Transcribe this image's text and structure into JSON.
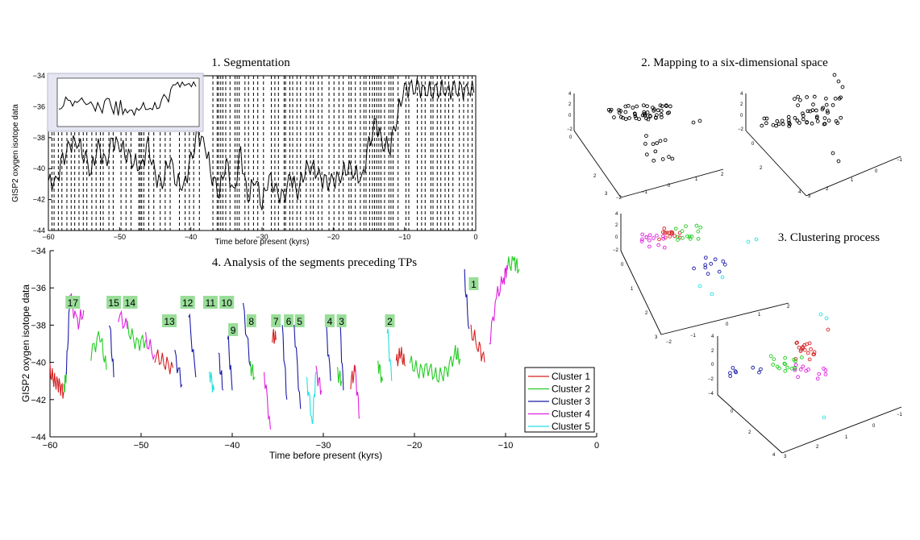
{
  "panel1": {
    "title": "1. Segmentation",
    "xlabel": "Time before present (kyrs)",
    "ylabel": "GISP2 oxygen isotope data",
    "xlim": [
      -60,
      0
    ],
    "ylim": [
      -44,
      -34
    ],
    "xticks": [
      "−60",
      "−50",
      "−40",
      "−30",
      "−20",
      "−10",
      "0"
    ],
    "yticks": [
      "−34",
      "−36",
      "−38",
      "−40",
      "−42",
      "−44"
    ],
    "inset": {
      "present": true
    }
  },
  "panel2": {
    "title": "2. Mapping to a six-dimensional space"
  },
  "panel3": {
    "title": "3. Clustering process"
  },
  "panel4": {
    "title": "4. Analysis of the segments preceding TPs",
    "xlabel": "Time before present (kyrs)",
    "ylabel": "GISP2 oxygen isotope data",
    "xticks": [
      "−60",
      "−50",
      "−40",
      "−30",
      "−20",
      "−10",
      "0"
    ],
    "yticks": [
      "−34",
      "−36",
      "−38",
      "−40",
      "−42",
      "−44"
    ],
    "legend": [
      "Cluster 1",
      "Cluster 2",
      "Cluster 3",
      "Cluster 4",
      "Cluster 5"
    ],
    "legend_colors": [
      "#d62020",
      "#22cc22",
      "#1a1aa8",
      "#e020e0",
      "#20e0e0"
    ],
    "tp_labels": [
      "17",
      "15",
      "14",
      "13",
      "12",
      "11",
      "10",
      "9",
      "8",
      "7",
      "6",
      "5",
      "4",
      "3",
      "2",
      "1"
    ]
  },
  "chart_data": [
    {
      "type": "line",
      "title": "1. Segmentation",
      "xlabel": "Time before present (kyrs)",
      "ylabel": "GISP2 oxygen isotope data",
      "xlim": [
        -60,
        0
      ],
      "ylim": [
        -44,
        -34
      ],
      "series": [
        {
          "x": [
            -60,
            -59,
            -58,
            -57,
            -56,
            -55,
            -54,
            -53,
            -52,
            -51,
            -50,
            -49,
            -48,
            -47,
            -46,
            -45,
            -44,
            -43,
            -42,
            -41,
            -40,
            -39,
            -38,
            -37,
            -36,
            -35,
            -34,
            -33,
            -32,
            -31,
            -30,
            -29,
            -28,
            -27,
            -26,
            -25,
            -24,
            -23,
            -22,
            -21,
            -20,
            -19,
            -18,
            -17,
            -16,
            -15,
            -14,
            -13,
            -12,
            -11,
            -10,
            -9,
            -8,
            -7,
            -6,
            -5,
            -4,
            -3,
            -2,
            -1,
            0
          ],
          "values": [
            -40.8,
            -41,
            -39.5,
            -38.5,
            -38.2,
            -39,
            -40.2,
            -38.5,
            -39.8,
            -38.2,
            -38.5,
            -39,
            -39.5,
            -40,
            -38.5,
            -40.5,
            -41,
            -39.2,
            -40.8,
            -41.2,
            -39.5,
            -37.8,
            -38.5,
            -40.5,
            -41.5,
            -39.5,
            -41.8,
            -39,
            -42,
            -40.5,
            -42.2,
            -40.5,
            -41.5,
            -42,
            -40.5,
            -41.5,
            -40,
            -39.8,
            -40.5,
            -41,
            -40.8,
            -40.5,
            -39.8,
            -40.2,
            -40.8,
            -38.5,
            -37,
            -38.5,
            -38.5,
            -36.5,
            -34.8,
            -34.9,
            -34.8,
            -35,
            -34.9,
            -34.8,
            -35,
            -34.9,
            -35,
            -34.9,
            -34.9
          ]
        }
      ],
      "segment_boundaries_kyrs": [
        -59.5,
        -59.2,
        -58.6,
        -58.1,
        -57.4,
        -56.8,
        -56.3,
        -55.7,
        -55.1,
        -54.6,
        -53.9,
        -53.3,
        -52.7,
        -52.3,
        -51.5,
        -50.9,
        -49.8,
        -49.1,
        -48.4,
        -47.3,
        -47.1,
        -46.9,
        -46.6,
        -45.9,
        -45.2,
        -44.3,
        -43.6,
        -42.9,
        -41.6,
        -40.8,
        -40.2,
        -39.6,
        -38.8,
        -36.9,
        -36.3,
        -36.1,
        -35.8,
        -35.5,
        -35.1,
        -34.5,
        -33.8,
        -33.5,
        -33.2,
        -32.4,
        -31.9,
        -31.2,
        -30.6,
        -29.8,
        -28.7,
        -28.2,
        -27.7,
        -26.9,
        -26.7,
        -26.1,
        -25.7,
        -25.1,
        -24.6,
        -23.8,
        -23.2,
        -22.8,
        -22.1,
        -21.6,
        -20.6,
        -19.9,
        -19.2,
        -18.6,
        -17.8,
        -17.5,
        -16.9,
        -16.2,
        -15.7,
        -15.4,
        -14.9,
        -14.5,
        -14.2,
        -13.9,
        -13.6,
        -13.3,
        -12.8,
        -12.2,
        -11.9,
        -11.6,
        -10.9,
        -9.8,
        -9.4,
        -8.2,
        -7.6,
        -7.1,
        -6.3,
        -6.0,
        -5.4,
        -4.9,
        -4.3,
        -3.8,
        -3.2,
        -2.3,
        -1.7,
        -1.1,
        -0.5
      ]
    },
    {
      "type": "line",
      "title": "4. Analysis of the segments preceding TPs",
      "xlabel": "Time before present (kyrs)",
      "ylabel": "GISP2 oxygen isotope data",
      "xlim": [
        -60,
        0
      ],
      "ylim": [
        -44,
        -34
      ],
      "series": [
        {
          "name": "Cluster 1",
          "segments": [
            [
              [
                -60,
                -40.5
              ],
              [
                -59.5,
                -41
              ],
              [
                -59,
                -41.2
              ],
              [
                -58.5,
                -41.6
              ]
            ],
            [
              [
                -48.5,
                -39.6
              ],
              [
                -47.5,
                -40.0
              ],
              [
                -46.5,
                -40.3
              ]
            ],
            [
              [
                -35.6,
                -38.5
              ],
              [
                -35.2,
                -38.8
              ]
            ],
            [
              [
                -27.0,
                -41.0
              ],
              [
                -26.5,
                -40.5
              ]
            ],
            [
              [
                -22.0,
                -40.0
              ],
              [
                -21.5,
                -39.5
              ],
              [
                -21.0,
                -40.2
              ]
            ],
            [
              [
                -13.8,
                -38.4
              ],
              [
                -13.0,
                -39.0
              ],
              [
                -12.3,
                -40.0
              ]
            ]
          ]
        },
        {
          "name": "Cluster 2",
          "segments": [
            [
              [
                -58.5,
                -41.6
              ],
              [
                -58.2,
                -40.5
              ]
            ],
            [
              [
                -55.5,
                -39.5
              ],
              [
                -54.5,
                -38.5
              ],
              [
                -53.8,
                -40.4
              ]
            ],
            [
              [
                -51.5,
                -38.2
              ],
              [
                -50.5,
                -39.0
              ],
              [
                -49.5,
                -38.8
              ]
            ],
            [
              [
                -38.0,
                -40.2
              ],
              [
                -37.5,
                -40.8
              ]
            ],
            [
              [
                -28.5,
                -40.5
              ],
              [
                -28.0,
                -41.0
              ]
            ],
            [
              [
                -24.0,
                -40.0
              ],
              [
                -23.5,
                -41.0
              ]
            ],
            [
              [
                -20.5,
                -40.0
              ],
              [
                -19.5,
                -40.5
              ],
              [
                -18.5,
                -40.3
              ],
              [
                -17.5,
                -40.8
              ],
              [
                -16.5,
                -40.5
              ],
              [
                -15.5,
                -39.5
              ],
              [
                -15.0,
                -39.8
              ]
            ],
            [
              [
                -9.8,
                -34.8
              ],
              [
                -9.0,
                -34.6
              ],
              [
                -8.5,
                -35.0
              ]
            ]
          ]
        },
        {
          "name": "Cluster 3",
          "segments": [
            [
              [
                -58.2,
                -40.5
              ],
              [
                -57.8,
                -36.4
              ]
            ],
            [
              [
                -53.5,
                -37.6
              ],
              [
                -53.0,
                -40.8
              ]
            ],
            [
              [
                -46.3,
                -39.6
              ],
              [
                -45.5,
                -41.2
              ]
            ],
            [
              [
                -44.8,
                -37.3
              ],
              [
                -44.0,
                -40.8
              ]
            ],
            [
              [
                -41.5,
                -39.6
              ],
              [
                -41.0,
                -41.5
              ]
            ],
            [
              [
                -40.5,
                -38.5
              ],
              [
                -40.0,
                -41.5
              ]
            ],
            [
              [
                -38.8,
                -37.0
              ],
              [
                -38.0,
                -40.2
              ]
            ],
            [
              [
                -34.5,
                -38.2
              ],
              [
                -34.0,
                -42.0
              ]
            ],
            [
              [
                -33.2,
                -38.0
              ],
              [
                -32.5,
                -42.5
              ]
            ],
            [
              [
                -29.8,
                -37.4
              ],
              [
                -29.2,
                -41.0
              ]
            ],
            [
              [
                -28.2,
                -37.6
              ],
              [
                -27.8,
                -41.5
              ]
            ],
            [
              [
                -14.5,
                -35.4
              ],
              [
                -14.0,
                -38.2
              ]
            ]
          ]
        },
        {
          "name": "Cluster 4",
          "segments": [
            [
              [
                -57.8,
                -36.4
              ],
              [
                -57.0,
                -38.0
              ],
              [
                -56.3,
                -37.2
              ]
            ],
            [
              [
                -52.5,
                -37.4
              ],
              [
                -51.5,
                -38.2
              ]
            ],
            [
              [
                -49.5,
                -38.8
              ],
              [
                -48.5,
                -39.6
              ]
            ],
            [
              [
                -36.5,
                -40.5
              ],
              [
                -35.8,
                -43.6
              ]
            ],
            [
              [
                -30.8,
                -40.5
              ],
              [
                -30.2,
                -41.5
              ]
            ],
            [
              [
                -26.5,
                -40.5
              ],
              [
                -26.0,
                -43.0
              ]
            ],
            [
              [
                -11.8,
                -39.0
              ],
              [
                -11.0,
                -36.5
              ],
              [
                -10.2,
                -35.5
              ],
              [
                -9.8,
                -34.8
              ]
            ]
          ]
        },
        {
          "name": "Cluster 5",
          "segments": [
            [
              [
                -42.5,
                -40.5
              ],
              [
                -42.0,
                -41.5
              ]
            ],
            [
              [
                -31.8,
                -41.0
              ],
              [
                -31.2,
                -43.2
              ],
              [
                -30.8,
                -40.5
              ]
            ],
            [
              [
                -23.0,
                -38.0
              ],
              [
                -22.5,
                -41.0
              ]
            ]
          ]
        }
      ],
      "tp_labels": [
        "17",
        "15",
        "14",
        "13",
        "12",
        "11",
        "10",
        "9",
        "8",
        "7",
        "6",
        "5",
        "4",
        "3",
        "2",
        "1"
      ],
      "tp_positions_kyrs": [
        -57.5,
        -53.0,
        -51.2,
        -46.9,
        -44.9,
        -42.4,
        -40.6,
        -39.9,
        -37.9,
        -35.2,
        -33.8,
        -32.6,
        -29.3,
        -28.0,
        -22.7,
        -13.5
      ]
    }
  ]
}
